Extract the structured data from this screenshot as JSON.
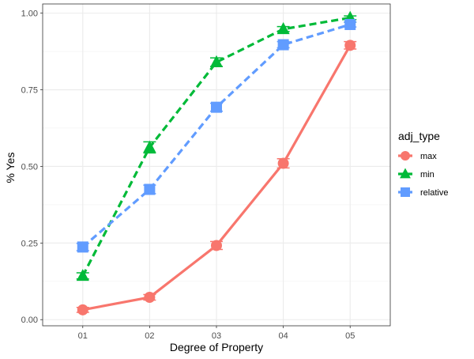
{
  "chart_data": {
    "type": "line",
    "xlabel": "Degree of Property",
    "ylabel": "% Yes",
    "categories": [
      "01",
      "02",
      "03",
      "04",
      "05"
    ],
    "ylim": [
      -0.02,
      1.03
    ],
    "yticks": [
      0.0,
      0.25,
      0.5,
      0.75,
      1.0
    ],
    "ytick_labels": [
      "0.00",
      "0.25",
      "0.50",
      "0.75",
      "1.00"
    ],
    "grid": true,
    "legend": {
      "title": "adj_type",
      "position": "right"
    },
    "series": [
      {
        "name": "max",
        "color": "#F8766D",
        "marker": "circle",
        "linestyle": "solid",
        "values": [
          0.032,
          0.073,
          0.242,
          0.51,
          0.895
        ],
        "errors": [
          0.008,
          0.009,
          0.013,
          0.015,
          0.012
        ]
      },
      {
        "name": "min",
        "color": "#00BA38",
        "marker": "triangle",
        "linestyle": "dashed",
        "values": [
          0.143,
          0.562,
          0.84,
          0.948,
          0.985
        ],
        "errors": [
          0.01,
          0.018,
          0.014,
          0.008,
          0.006
        ]
      },
      {
        "name": "relative",
        "color": "#619CFF",
        "marker": "square",
        "linestyle": "dashed",
        "values": [
          0.237,
          0.425,
          0.693,
          0.897,
          0.963
        ],
        "errors": [
          0.012,
          0.014,
          0.013,
          0.01,
          0.008
        ]
      }
    ]
  }
}
